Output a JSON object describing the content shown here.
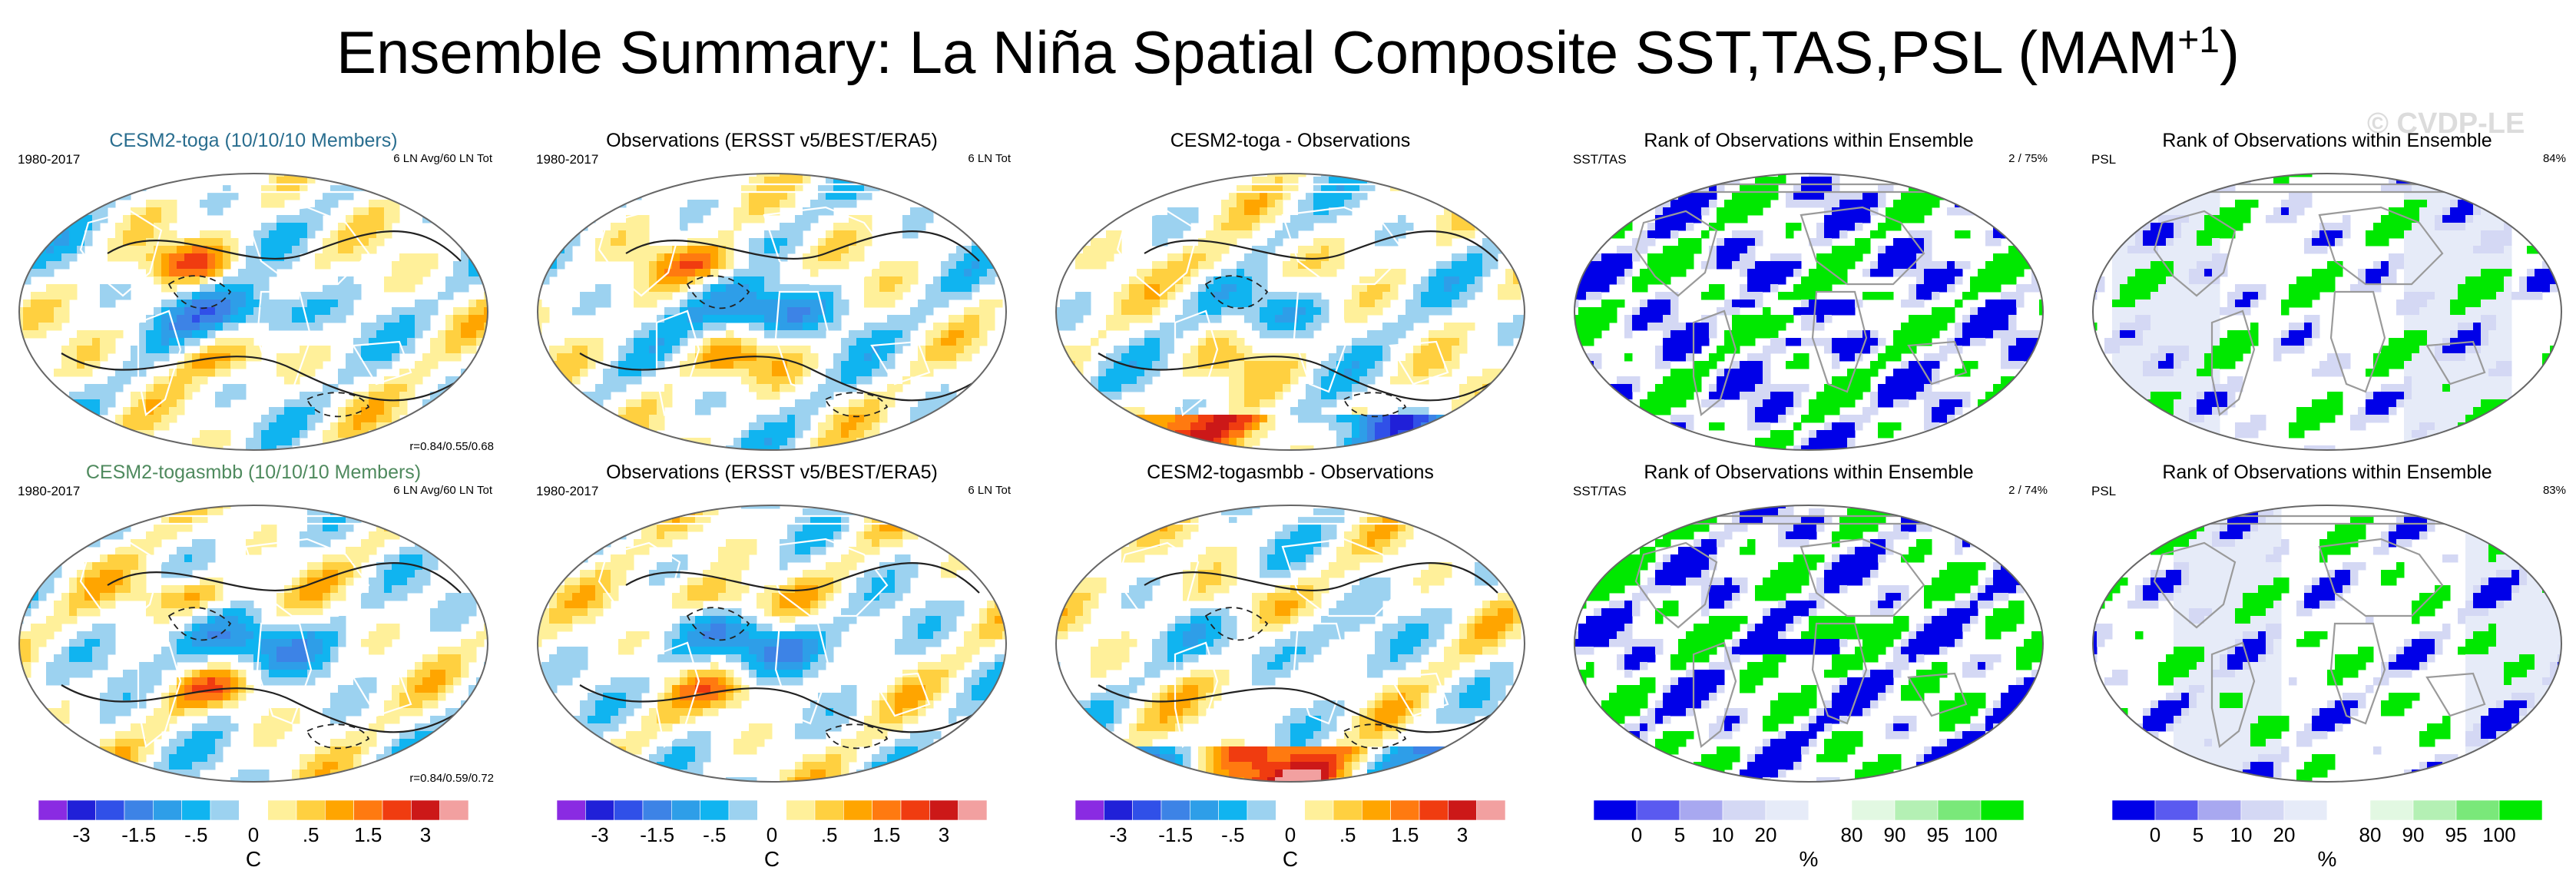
{
  "title": {
    "main": "Ensemble Summary: La Niña Spatial Composite SST,TAS,PSL (MAM",
    "superscript": "+1",
    "close": ")"
  },
  "watermark": "© CVDP-LE",
  "colors": {
    "background": "#ffffff",
    "coast": "#ffffff",
    "contour": "#222222",
    "map_outline": "#666666"
  },
  "panels": {
    "r1c1": {
      "title": "CESM2-toga (10/10/10 Members)",
      "title_color": "#2a6e8f",
      "left_label": "1980-2017",
      "right_label": "6 LN Avg/60 LN Tot",
      "corr": "r=0.84/0.55/0.68"
    },
    "r1c2": {
      "title": "Observations (ERSST v5/BEST/ERA5)",
      "left_label": "1980-2017",
      "right_label": "6 LN Tot"
    },
    "r1c3": {
      "title": "CESM2-toga - Observations"
    },
    "r1c4": {
      "title": "Rank of Observations within Ensemble",
      "left_label": "SST/TAS",
      "right_label": "2 /  75%"
    },
    "r1c5": {
      "title": "Rank of Observations within Ensemble",
      "left_label": "PSL",
      "right_label": "84%"
    },
    "r2c1": {
      "title": "CESM2-togasmbb (10/10/10 Members)",
      "title_color": "#4f8a5e",
      "left_label": "1980-2017",
      "right_label": "6 LN Avg/60 LN Tot",
      "corr": "r=0.84/0.59/0.72"
    },
    "r2c2": {
      "title": "Observations (ERSST v5/BEST/ERA5)",
      "left_label": "1980-2017",
      "right_label": "6 LN Tot"
    },
    "r2c3": {
      "title": "CESM2-togasmbb - Observations"
    },
    "r2c4": {
      "title": "Rank of Observations within Ensemble",
      "left_label": "SST/TAS",
      "right_label": "2 /  74%"
    },
    "r2c5": {
      "title": "Rank of Observations within Ensemble",
      "left_label": "PSL",
      "right_label": "83%"
    }
  },
  "chart_data": [
    {
      "type": "heatmap",
      "name": "temperature_composite_maps",
      "variables": [
        "SST",
        "TAS",
        "PSL"
      ],
      "season": "MAM+1",
      "period": "1980-2017",
      "levels": [
        -3,
        -2.5,
        -2,
        -1.5,
        -1,
        -0.5,
        -0.25,
        0,
        0.25,
        0.5,
        1,
        1.5,
        2,
        2.5,
        3
      ],
      "colorbar": {
        "colors": [
          "#8a2be2",
          "#2020d8",
          "#3050e8",
          "#3d83e6",
          "#2e9ee8",
          "#10b4f0",
          "#9cd2f0",
          "#ffffff",
          "#fff09a",
          "#ffd040",
          "#ffa500",
          "#ff7a10",
          "#f03c10",
          "#cc1818",
          "#f2a0a0"
        ],
        "tick_labels": [
          "-3",
          "-1.5",
          "-.5",
          "0",
          ".5",
          "1.5",
          "3"
        ],
        "units": "C"
      },
      "correlations": {
        "CESM2-toga": [
          0.84,
          0.55,
          0.68
        ],
        "CESM2-togasmbb": [
          0.84,
          0.59,
          0.72
        ]
      }
    },
    {
      "type": "heatmap",
      "name": "rank_of_observations",
      "colorbar": {
        "colors": [
          "#0000e8",
          "#5a5af0",
          "#a8a8f0",
          "#d4d8f4",
          "#e6ebf8",
          "#ffffff",
          "#e2f8e2",
          "#b4f0b4",
          "#7ae87a",
          "#00e800"
        ],
        "tick_labels": [
          "0",
          "5",
          "10",
          "20",
          "80",
          "90",
          "95",
          "100"
        ],
        "units": "%"
      },
      "panels": [
        {
          "model": "CESM2-toga",
          "field": "SST/TAS",
          "summary": "2 /  75%"
        },
        {
          "model": "CESM2-toga",
          "field": "PSL",
          "summary": "84%"
        },
        {
          "model": "CESM2-togasmbb",
          "field": "SST/TAS",
          "summary": "2 /  74%"
        },
        {
          "model": "CESM2-togasmbb",
          "field": "PSL",
          "summary": "83%"
        }
      ]
    }
  ]
}
